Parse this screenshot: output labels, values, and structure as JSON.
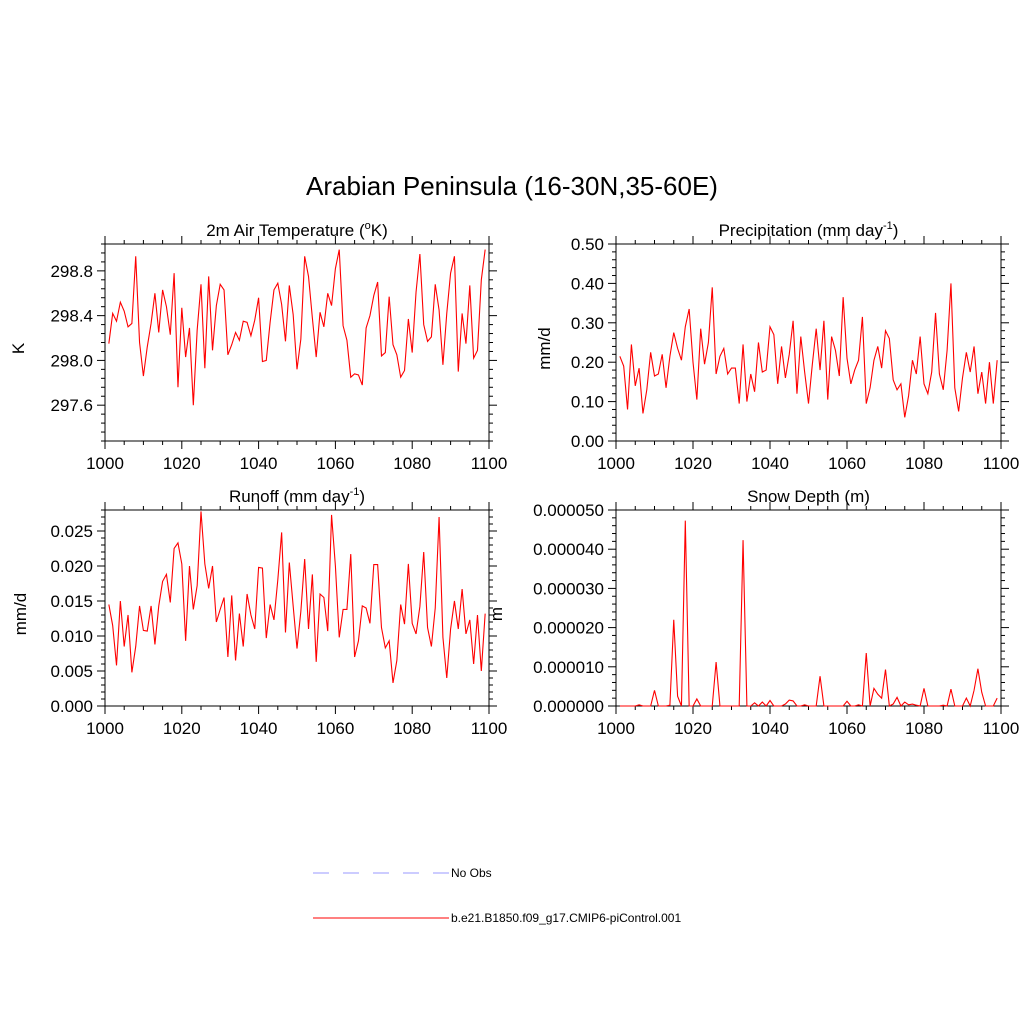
{
  "figure": {
    "title": "Arabian Peninsula (16-30N,35-60E)"
  },
  "chart_data": [
    {
      "type": "line",
      "title_main": "2m Air Temperature (",
      "title_sup": "o",
      "title_tail": "K)",
      "ylabel": "K",
      "xlim": [
        1000,
        1100
      ],
      "ylim": [
        297.28,
        299.04
      ],
      "xticks": [
        1000,
        1020,
        1040,
        1060,
        1080,
        1100
      ],
      "yticks": [
        297.6,
        298.0,
        298.4,
        298.8
      ],
      "ytick_labels": [
        "297.6",
        "298.0",
        "298.4",
        "298.8"
      ],
      "series": [
        {
          "name": "b.e21.B1850.f09_g17.CMIP6-piControl.001",
          "color": "#ff0000",
          "x_start": 1001,
          "values": [
            298.15,
            298.42,
            298.35,
            298.52,
            298.44,
            298.3,
            298.33,
            298.93,
            298.16,
            297.86,
            298.12,
            298.33,
            298.6,
            298.25,
            298.63,
            298.48,
            298.23,
            298.78,
            297.76,
            298.47,
            298.03,
            298.29,
            297.6,
            298.27,
            298.68,
            297.93,
            298.75,
            298.09,
            298.49,
            298.68,
            298.63,
            298.05,
            298.14,
            298.25,
            298.18,
            298.35,
            298.34,
            298.22,
            298.36,
            298.56,
            297.99,
            298.0,
            298.34,
            298.63,
            298.69,
            298.5,
            298.17,
            298.67,
            298.41,
            297.92,
            298.19,
            298.93,
            298.75,
            298.38,
            298.03,
            298.43,
            298.3,
            298.6,
            298.49,
            298.82,
            298.99,
            298.31,
            298.18,
            297.85,
            297.88,
            297.87,
            297.78,
            298.29,
            298.4,
            298.58,
            298.7,
            298.04,
            298.07,
            298.57,
            298.14,
            298.05,
            297.85,
            297.91,
            298.37,
            298.07,
            298.61,
            298.95,
            298.32,
            298.17,
            298.21,
            298.68,
            298.45,
            297.96,
            298.42,
            298.78,
            298.93,
            297.9,
            298.42,
            298.15,
            298.67,
            298.02,
            298.09,
            298.72,
            298.99
          ]
        }
      ]
    },
    {
      "type": "line",
      "title_main": "Precipitation (mm day",
      "title_sup": "-1",
      "title_tail": ")",
      "ylabel": "mm/d",
      "xlim": [
        1000,
        1100
      ],
      "ylim": [
        0.0,
        0.5
      ],
      "xticks": [
        1000,
        1020,
        1040,
        1060,
        1080,
        1100
      ],
      "yticks": [
        0.0,
        0.1,
        0.2,
        0.3,
        0.4,
        0.5
      ],
      "ytick_labels": [
        "0.00",
        "0.10",
        "0.20",
        "0.30",
        "0.40",
        "0.50"
      ],
      "series": [
        {
          "name": "b.e21.B1850.f09_g17.CMIP6-piControl.001",
          "color": "#ff0000",
          "x_start": 1001,
          "values": [
            0.215,
            0.19,
            0.08,
            0.245,
            0.14,
            0.185,
            0.07,
            0.13,
            0.225,
            0.165,
            0.17,
            0.22,
            0.135,
            0.215,
            0.275,
            0.235,
            0.205,
            0.29,
            0.335,
            0.2,
            0.105,
            0.285,
            0.195,
            0.25,
            0.39,
            0.17,
            0.215,
            0.235,
            0.17,
            0.185,
            0.185,
            0.095,
            0.245,
            0.1,
            0.17,
            0.125,
            0.25,
            0.175,
            0.18,
            0.29,
            0.27,
            0.145,
            0.24,
            0.16,
            0.22,
            0.305,
            0.12,
            0.265,
            0.175,
            0.095,
            0.195,
            0.285,
            0.18,
            0.305,
            0.105,
            0.265,
            0.23,
            0.165,
            0.365,
            0.21,
            0.145,
            0.18,
            0.205,
            0.315,
            0.095,
            0.135,
            0.205,
            0.24,
            0.185,
            0.28,
            0.26,
            0.155,
            0.13,
            0.145,
            0.06,
            0.115,
            0.205,
            0.17,
            0.265,
            0.145,
            0.12,
            0.175,
            0.325,
            0.17,
            0.13,
            0.23,
            0.4,
            0.135,
            0.075,
            0.16,
            0.225,
            0.175,
            0.24,
            0.12,
            0.175,
            0.095,
            0.2,
            0.095,
            0.205
          ]
        }
      ]
    },
    {
      "type": "line",
      "title_main": "Runoff (mm day",
      "title_sup": "-1",
      "title_tail": ")",
      "ylabel": "mm/d",
      "xlim": [
        1000,
        1100
      ],
      "ylim": [
        0.0,
        0.028
      ],
      "xticks": [
        1000,
        1020,
        1040,
        1060,
        1080,
        1100
      ],
      "yticks": [
        0.0,
        0.005,
        0.01,
        0.015,
        0.02,
        0.025
      ],
      "ytick_labels": [
        "0.000",
        "0.005",
        "0.010",
        "0.015",
        "0.020",
        "0.025"
      ],
      "series": [
        {
          "name": "b.e21.B1850.f09_g17.CMIP6-piControl.001",
          "color": "#ff0000",
          "x_start": 1001,
          "values": [
            0.0145,
            0.0115,
            0.0058,
            0.015,
            0.0085,
            0.013,
            0.0048,
            0.0085,
            0.0143,
            0.0108,
            0.0107,
            0.0143,
            0.0088,
            0.0143,
            0.0178,
            0.0188,
            0.0148,
            0.0225,
            0.0233,
            0.0203,
            0.0093,
            0.02,
            0.0138,
            0.0172,
            0.0278,
            0.0203,
            0.0168,
            0.02,
            0.012,
            0.0138,
            0.0155,
            0.007,
            0.0158,
            0.0065,
            0.0132,
            0.0085,
            0.016,
            0.013,
            0.011,
            0.0198,
            0.0197,
            0.0097,
            0.0145,
            0.0123,
            0.018,
            0.0248,
            0.0105,
            0.0205,
            0.0143,
            0.0082,
            0.0135,
            0.021,
            0.011,
            0.0188,
            0.0063,
            0.016,
            0.0155,
            0.0107,
            0.0273,
            0.02,
            0.0098,
            0.0138,
            0.0138,
            0.0217,
            0.007,
            0.0093,
            0.0143,
            0.014,
            0.0118,
            0.0202,
            0.0202,
            0.0112,
            0.0083,
            0.0093,
            0.0033,
            0.0065,
            0.0145,
            0.0117,
            0.0203,
            0.0118,
            0.0103,
            0.0142,
            0.022,
            0.0112,
            0.0085,
            0.014,
            0.027,
            0.0098,
            0.004,
            0.011,
            0.015,
            0.011,
            0.0167,
            0.0103,
            0.0123,
            0.006,
            0.013,
            0.005,
            0.0132
          ]
        }
      ]
    },
    {
      "type": "line",
      "title_main": "Snow Depth (m)",
      "title_sup": "",
      "title_tail": "",
      "ylabel": "m",
      "xlim": [
        1000,
        1100
      ],
      "ylim": [
        0.0,
        5e-05
      ],
      "xticks": [
        1000,
        1020,
        1040,
        1060,
        1080,
        1100
      ],
      "yticks": [
        0.0,
        1e-05,
        2e-05,
        3e-05,
        4e-05,
        5e-05
      ],
      "ytick_labels": [
        "0.000000",
        "0.000010",
        "0.000020",
        "0.000030",
        "0.000040",
        "0.000050"
      ],
      "series": [
        {
          "name": "b.e21.B1850.f09_g17.CMIP6-piControl.001",
          "color": "#ff0000",
          "x_start": 1001,
          "values": [
            0.0,
            0.0,
            0.0,
            0.0,
            0.0,
            3e-07,
            0.0,
            0.0,
            0.0,
            4e-06,
            0.0,
            0.0,
            0.0,
            2e-07,
            2.2e-05,
            2.5e-06,
            0.0,
            4.73e-05,
            0.0,
            0.0,
            1.8e-06,
            0.0,
            0.0,
            0.0,
            0.0,
            1.12e-05,
            0.0,
            0.0,
            0.0,
            0.0,
            0.0,
            0.0,
            4.23e-05,
            0.0,
            0.0,
            8e-07,
            0.0,
            1e-06,
            0.0,
            1.4e-06,
            0.0,
            0.0,
            0.0,
            5e-07,
            1.5e-06,
            1.3e-06,
            0.0,
            0.0,
            3e-07,
            0.0,
            0.0,
            0.0,
            7.6e-06,
            0.0,
            0.0,
            0.0,
            0.0,
            0.0,
            0.0,
            1.2e-06,
            0.0,
            0.0,
            3e-07,
            0.0,
            1.35e-05,
            0.0,
            4.5e-06,
            3e-06,
            2e-06,
            9.3e-06,
            0.0,
            5e-07,
            2.2e-06,
            0.0,
            1e-06,
            3e-07,
            5e-07,
            2e-07,
            0.0,
            4.5e-06,
            0.0,
            0.0,
            0.0,
            0.0,
            2e-07,
            0.0,
            4.3e-06,
            0.0,
            0.0,
            0.0,
            2e-06,
            0.0,
            4e-06,
            9.5e-06,
            3.5e-06,
            0.0,
            0.0,
            0.0,
            2e-06
          ]
        }
      ]
    }
  ],
  "legend": {
    "items": [
      {
        "label": "No Obs",
        "color": "#9999ff",
        "dash": true
      },
      {
        "label": "b.e21.B1850.f09_g17.CMIP6-piControl.001",
        "color": "#ff0000",
        "dash": false
      }
    ]
  }
}
